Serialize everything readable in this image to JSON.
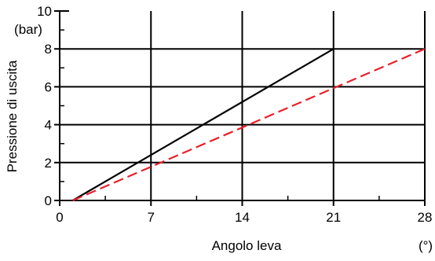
{
  "chart_data": {
    "type": "line",
    "title": "",
    "xlabel": "Angolo leva",
    "xunit": "(°)",
    "ylabel": "Pressione di uscita",
    "yunit": "(bar)",
    "xlim": [
      0,
      28
    ],
    "ylim": [
      0,
      10
    ],
    "x_ticks": [
      0,
      7,
      14,
      21,
      28
    ],
    "y_ticks": [
      0,
      2,
      4,
      6,
      8,
      10
    ],
    "grid": true,
    "series": [
      {
        "color": "#000000",
        "dash": "solid",
        "points": [
          [
            1,
            0
          ],
          [
            21,
            8
          ]
        ]
      },
      {
        "color": "#e8202a",
        "dash": "dashed",
        "points": [
          [
            1,
            0
          ],
          [
            28,
            8
          ]
        ]
      }
    ]
  }
}
